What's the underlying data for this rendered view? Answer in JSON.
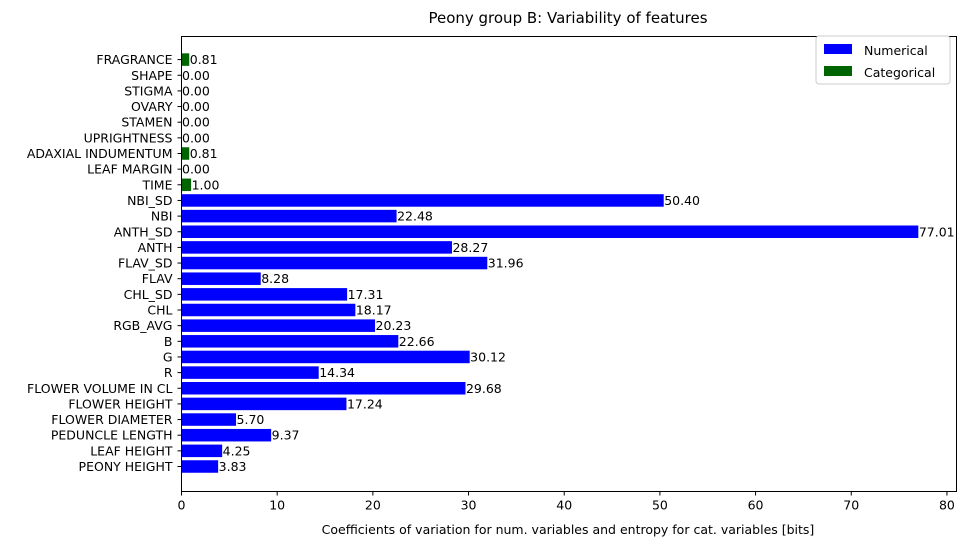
{
  "chart_data": {
    "type": "bar",
    "orientation": "horizontal",
    "title": "Peony group B: Variability of features",
    "xlabel": "Coefficients of variation for num. variables and entropy for cat. variables [bits]",
    "ylabel": "",
    "xlim": [
      0,
      81
    ],
    "xticks": [
      0,
      10,
      20,
      30,
      40,
      50,
      60,
      70,
      80
    ],
    "grid": false,
    "legend_position": "top-right",
    "categories": [
      "PEONY HEIGHT",
      "LEAF HEIGHT",
      "PEDUNCLE LENGTH",
      "FLOWER DIAMETER",
      "FLOWER HEIGHT",
      "FLOWER VOLUME IN CL",
      "R",
      "G",
      "B",
      "RGB_AVG",
      "CHL",
      "CHL_SD",
      "FLAV",
      "FLAV_SD",
      "ANTH",
      "ANTH_SD",
      "NBI",
      "NBI_SD",
      "TIME",
      "LEAF MARGIN",
      "ADAXIAL INDUMENTUM",
      "UPRIGHTNESS",
      "STAMEN",
      "OVARY",
      "STIGMA",
      "SHAPE",
      "FRAGRANCE"
    ],
    "values": [
      3.83,
      4.25,
      9.37,
      5.7,
      17.24,
      29.68,
      14.34,
      30.12,
      22.66,
      20.23,
      18.17,
      17.31,
      8.28,
      31.96,
      28.27,
      77.01,
      22.48,
      50.4,
      1.0,
      0.0,
      0.81,
      0.0,
      0.0,
      0.0,
      0.0,
      0.0,
      0.81
    ],
    "value_labels": [
      "3.83",
      "4.25",
      "9.37",
      "5.70",
      "17.24",
      "29.68",
      "14.34",
      "30.12",
      "22.66",
      "20.23",
      "18.17",
      "17.31",
      "8.28",
      "31.96",
      "28.27",
      "77.01",
      "22.48",
      "50.40",
      "1.00",
      "0.00",
      "0.81",
      "0.00",
      "0.00",
      "0.00",
      "0.00",
      "0.00",
      "0.81"
    ],
    "kind": [
      "Numerical",
      "Numerical",
      "Numerical",
      "Numerical",
      "Numerical",
      "Numerical",
      "Numerical",
      "Numerical",
      "Numerical",
      "Numerical",
      "Numerical",
      "Numerical",
      "Numerical",
      "Numerical",
      "Numerical",
      "Numerical",
      "Numerical",
      "Numerical",
      "Categorical",
      "Categorical",
      "Categorical",
      "Categorical",
      "Categorical",
      "Categorical",
      "Categorical",
      "Categorical",
      "Categorical"
    ],
    "series": [
      {
        "name": "Numerical",
        "color": "#0000ff"
      },
      {
        "name": "Categorical",
        "color": "#006400"
      }
    ]
  }
}
